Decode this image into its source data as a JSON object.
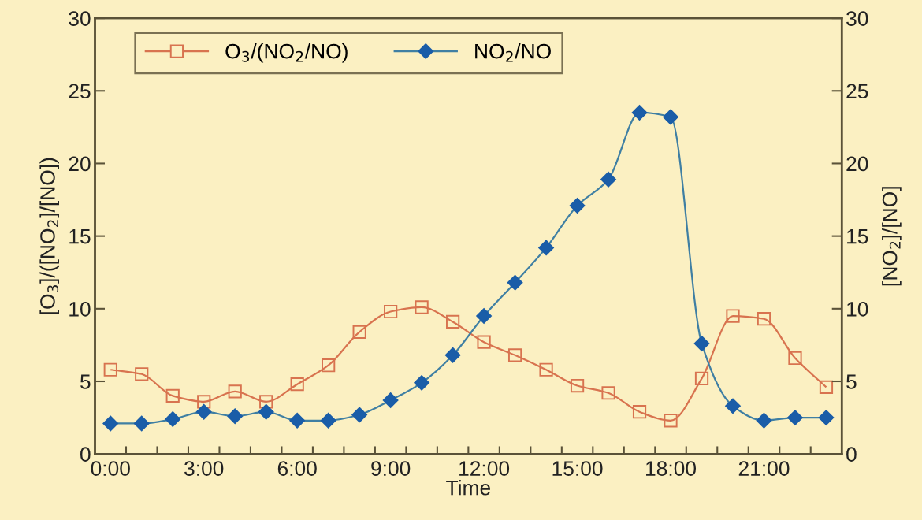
{
  "chart_data": {
    "type": "line",
    "xlabel": "Time",
    "ylabel": "[O$_{3}$]/([NO$_{2}$]/[NO])",
    "y2label": "[NO$_{2}$]/[NO]",
    "x": [
      0,
      1,
      2,
      3,
      4,
      5,
      6,
      7,
      8,
      9,
      10,
      11,
      12,
      13,
      14,
      15,
      16,
      17,
      18,
      19,
      20,
      21,
      22,
      23
    ],
    "series": [
      {
        "name": "O$_{3}$/(NO$_{2}$/NO)",
        "color": "#d8734f",
        "marker": "square",
        "values": [
          5.8,
          5.5,
          4.0,
          3.6,
          4.3,
          3.6,
          4.8,
          6.1,
          8.4,
          9.8,
          10.1,
          9.1,
          7.7,
          6.8,
          5.8,
          4.7,
          4.2,
          2.9,
          2.3,
          5.2,
          9.5,
          9.3,
          6.6,
          4.6
        ]
      },
      {
        "name": "NO$_{2}$/NO",
        "color": "#1a5da8",
        "marker": "diamond",
        "axis": "y2",
        "values": [
          2.1,
          2.1,
          2.4,
          2.9,
          2.6,
          2.9,
          2.3,
          2.3,
          2.7,
          3.7,
          4.9,
          6.8,
          9.5,
          11.8,
          14.2,
          17.1,
          18.9,
          23.5,
          23.2,
          7.6,
          3.3,
          2.3,
          2.5,
          2.5
        ]
      }
    ],
    "xlim": [
      -0.5,
      23.5
    ],
    "xticks": [
      {
        "value": 0,
        "label": "0:00"
      },
      {
        "value": 3,
        "label": "3:00"
      },
      {
        "value": 6,
        "label": "6:00"
      },
      {
        "value": 9,
        "label": "9:00"
      },
      {
        "value": 12,
        "label": "12:00"
      },
      {
        "value": 15,
        "label": "15:00"
      },
      {
        "value": 18,
        "label": "18:00"
      },
      {
        "value": 21,
        "label": "21:00"
      },
      {
        "value": 0.5,
        "label": null
      },
      {
        "value": 1.5,
        "label": null
      },
      {
        "value": 2.5,
        "label": null
      },
      {
        "value": 3.5,
        "label": null
      },
      {
        "value": 4.5,
        "label": null
      },
      {
        "value": 5.5,
        "label": null
      },
      {
        "value": 6.5,
        "label": null
      },
      {
        "value": 7.5,
        "label": null
      },
      {
        "value": 8.5,
        "label": null
      },
      {
        "value": 9.5,
        "label": null
      },
      {
        "value": 10.5,
        "label": null
      },
      {
        "value": 11.5,
        "label": null
      },
      {
        "value": 12.5,
        "label": null
      },
      {
        "value": 13.5,
        "label": null
      },
      {
        "value": 14.5,
        "label": null
      },
      {
        "value": 15.5,
        "label": null
      },
      {
        "value": 16.5,
        "label": null
      },
      {
        "value": 17.5,
        "label": null
      },
      {
        "value": 18.5,
        "label": null
      },
      {
        "value": 19.5,
        "label": null
      },
      {
        "value": 20.5,
        "label": null
      },
      {
        "value": 21.5,
        "label": null
      },
      {
        "value": 22.5,
        "label": null
      }
    ],
    "ylim": [
      0,
      30
    ],
    "yticks": [
      0,
      5,
      10,
      15,
      20,
      25,
      30
    ],
    "y2lim": [
      0,
      30
    ],
    "y2ticks": [
      0,
      5,
      10,
      15,
      20,
      25,
      30
    ],
    "grid": false,
    "legend": "top left",
    "line_style": "solid"
  }
}
